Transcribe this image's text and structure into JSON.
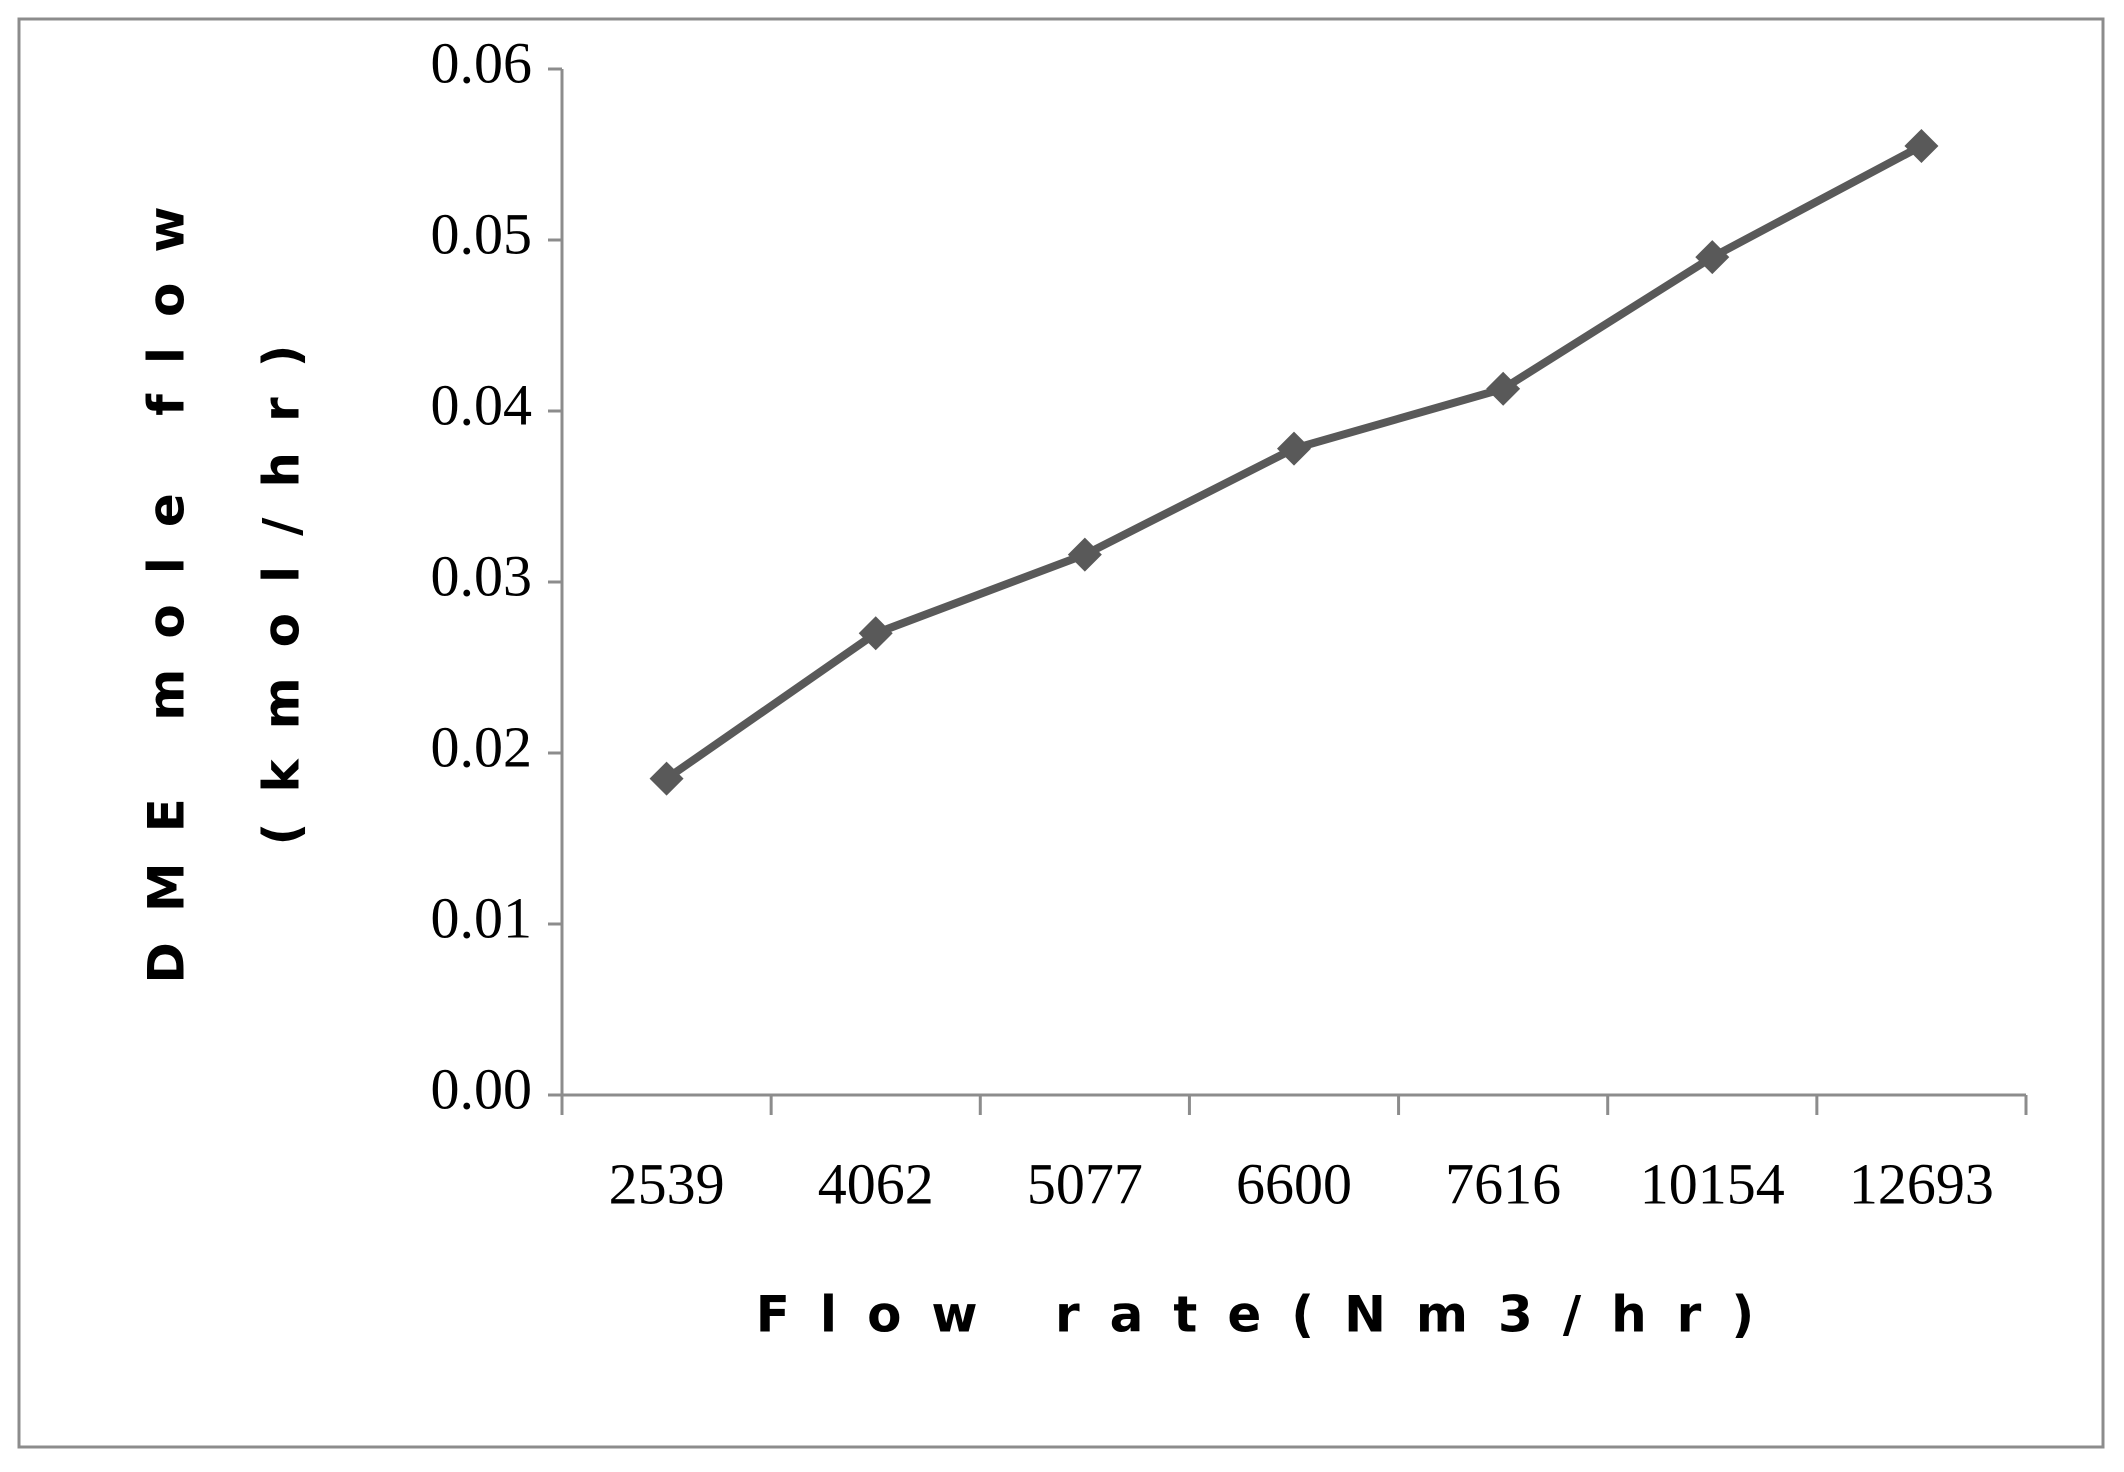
{
  "chart_data": {
    "type": "line",
    "xlabel": "Flow rate(Nm3/hr)",
    "ylabel": [
      "DME mole flow",
      "(kmol/hr)"
    ],
    "categories": [
      "2539",
      "4062",
      "5077",
      "6600",
      "7616",
      "10154",
      "12693"
    ],
    "series": [
      {
        "name": "DME mole flow",
        "color": "#595959",
        "values": [
          0.0185,
          0.027,
          0.0316,
          0.0378,
          0.0413,
          0.049,
          0.0555
        ]
      }
    ],
    "ylim": [
      0,
      0.06
    ],
    "yticks": [
      {
        "value": 0,
        "label": "0.00"
      },
      0.01,
      0.02,
      0.03,
      0.04,
      0.05,
      0.06
    ],
    "grid": false
  }
}
